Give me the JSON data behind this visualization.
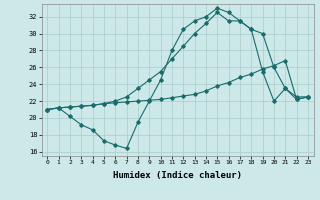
{
  "xlabel": "Humidex (Indice chaleur)",
  "bg_color": "#cce8e8",
  "grid_color": "#aacccc",
  "line_color": "#1a6b6b",
  "xlim": [
    -0.5,
    23.5
  ],
  "ylim": [
    15.5,
    33.5
  ],
  "xticks": [
    0,
    1,
    2,
    3,
    4,
    5,
    6,
    7,
    8,
    9,
    10,
    11,
    12,
    13,
    14,
    15,
    16,
    17,
    18,
    19,
    20,
    21,
    22,
    23
  ],
  "yticks": [
    16,
    18,
    20,
    22,
    24,
    26,
    28,
    30,
    32
  ],
  "line1_x": [
    0,
    1,
    2,
    3,
    4,
    5,
    6,
    7,
    8,
    9,
    10,
    11,
    12,
    13,
    14,
    15,
    16,
    17,
    18,
    19,
    20,
    21,
    22,
    23
  ],
  "line1_y": [
    21.0,
    21.2,
    20.2,
    19.2,
    18.6,
    17.3,
    16.8,
    16.4,
    19.5,
    22.0,
    24.5,
    28.0,
    30.5,
    31.5,
    32.0,
    33.0,
    32.5,
    31.5,
    30.5,
    25.5,
    22.0,
    23.5,
    22.5,
    22.5
  ],
  "line2_x": [
    0,
    1,
    2,
    3,
    4,
    5,
    6,
    7,
    8,
    9,
    10,
    11,
    12,
    13,
    14,
    15,
    16,
    17,
    18,
    19,
    20,
    21,
    22,
    23
  ],
  "line2_y": [
    21.0,
    21.2,
    21.3,
    21.4,
    21.5,
    21.7,
    21.8,
    21.9,
    22.0,
    22.1,
    22.2,
    22.4,
    22.6,
    22.8,
    23.2,
    23.8,
    24.2,
    24.8,
    25.2,
    25.8,
    26.2,
    26.8,
    22.2,
    22.5
  ],
  "line3_x": [
    0,
    1,
    2,
    3,
    4,
    5,
    6,
    7,
    8,
    9,
    10,
    11,
    12,
    13,
    14,
    15,
    16,
    17,
    18,
    19,
    20,
    21,
    22,
    23
  ],
  "line3_y": [
    21.0,
    21.2,
    21.3,
    21.4,
    21.5,
    21.7,
    22.0,
    22.5,
    23.5,
    24.5,
    25.5,
    27.0,
    28.5,
    30.0,
    31.2,
    32.5,
    31.5,
    31.5,
    30.5,
    30.0,
    26.0,
    23.5,
    22.2,
    22.5
  ]
}
